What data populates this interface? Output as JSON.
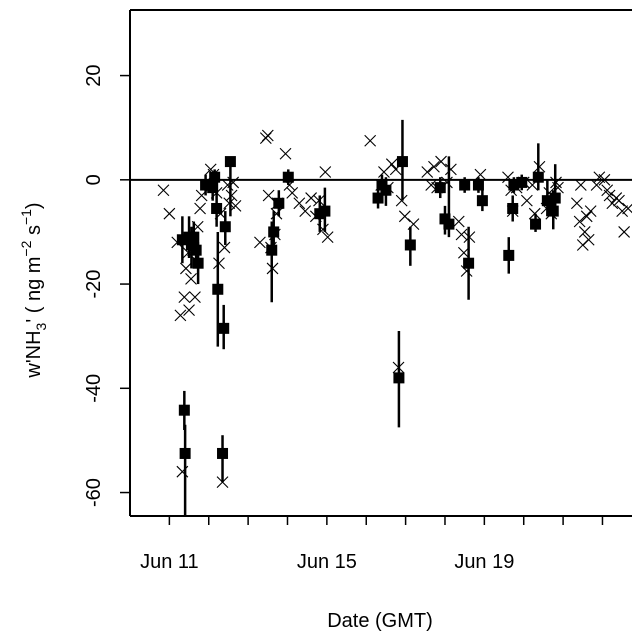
{
  "chart_data": {
    "type": "scatter",
    "xlabel": "Date (GMT)",
    "ylabel": {
      "prefix": "w'NH",
      "sub": "3",
      "middle": "' ( ng m",
      "sup1": "−2",
      "s": " s",
      "sup2": "−1",
      "suffix": ")"
    },
    "x_unit": "day of June (GMT)",
    "xlim": [
      10.0,
      22.75
    ],
    "ylim": [
      -64.5,
      34.5
    ],
    "x_ticks": [
      11,
      15,
      19
    ],
    "x_tick_labels": [
      "Jun 11",
      "Jun 15",
      "Jun 19"
    ],
    "y_ticks": [
      -60,
      -40,
      -20,
      0,
      20
    ],
    "y_tick_labels": [
      "-60",
      "-40",
      "-20",
      "0",
      "20"
    ],
    "grid": false,
    "reference_line_y": 0,
    "series": [
      {
        "marker": "square",
        "points": [
          {
            "x": 11.33,
            "y": -11.5,
            "lo": -16.0,
            "hi": -7.0
          },
          {
            "x": 11.38,
            "y": -44.2,
            "lo": -48.0,
            "hi": -40.5
          },
          {
            "x": 11.4,
            "y": -52.5,
            "lo": -64.5,
            "hi": -47.0
          },
          {
            "x": 11.5,
            "y": -11.0,
            "lo": -15.0,
            "hi": -7.0
          },
          {
            "x": 11.56,
            "y": -12.5,
            "lo": -17.0,
            "hi": -9.0
          },
          {
            "x": 11.62,
            "y": -11.0,
            "lo": -14.0,
            "hi": -8.0
          },
          {
            "x": 11.68,
            "y": -13.5,
            "lo": -17.0,
            "hi": -10.0
          },
          {
            "x": 11.73,
            "y": -16.0,
            "lo": -20.0,
            "hi": -12.0
          },
          {
            "x": 11.92,
            "y": -1.0,
            "lo": -3.0,
            "hi": 1.0
          },
          {
            "x": 12.1,
            "y": -1.5,
            "lo": -4.0,
            "hi": 1.0
          },
          {
            "x": 12.15,
            "y": 0.5,
            "lo": -1.5,
            "hi": 2.0
          },
          {
            "x": 12.2,
            "y": -5.5,
            "lo": -9.0,
            "hi": -2.0
          },
          {
            "x": 12.23,
            "y": -21.0,
            "lo": -32.0,
            "hi": -10.0
          },
          {
            "x": 12.35,
            "y": -52.5,
            "lo": -58.0,
            "hi": -49.0
          },
          {
            "x": 12.38,
            "y": -28.5,
            "lo": -32.5,
            "hi": -24.0
          },
          {
            "x": 12.42,
            "y": -9.0,
            "lo": -12.5,
            "hi": -6.0
          },
          {
            "x": 12.55,
            "y": 3.5,
            "lo": -7.0,
            "hi": 0.5
          },
          {
            "x": 13.6,
            "y": -13.5,
            "lo": -23.5,
            "hi": -8.0
          },
          {
            "x": 13.65,
            "y": -10.0,
            "lo": -14.0,
            "hi": -6.0
          },
          {
            "x": 13.78,
            "y": -4.5,
            "lo": -7.0,
            "hi": -2.0
          },
          {
            "x": 14.02,
            "y": 0.5,
            "lo": -1.0,
            "hi": 2.0
          },
          {
            "x": 14.82,
            "y": -6.5,
            "lo": -10.0,
            "hi": -3.0
          },
          {
            "x": 14.95,
            "y": -6.0,
            "lo": -10.0,
            "hi": -1.5
          },
          {
            "x": 16.3,
            "y": -3.5,
            "lo": -5.5,
            "hi": -1.0
          },
          {
            "x": 16.4,
            "y": -1.0,
            "lo": -3.5,
            "hi": 1.0
          },
          {
            "x": 16.5,
            "y": -2.0,
            "lo": -5.0,
            "hi": 0.5
          },
          {
            "x": 16.83,
            "y": -38.0,
            "lo": -47.5,
            "hi": -29.0
          },
          {
            "x": 16.92,
            "y": 3.5,
            "lo": -4.0,
            "hi": 11.5
          },
          {
            "x": 17.12,
            "y": -12.5,
            "lo": -16.5,
            "hi": -9.0
          },
          {
            "x": 17.88,
            "y": -1.5,
            "lo": -3.5,
            "hi": 0.5
          },
          {
            "x": 18.0,
            "y": -7.5,
            "lo": -10.5,
            "hi": -5.0
          },
          {
            "x": 18.1,
            "y": -8.5,
            "lo": -11.0,
            "hi": 4.5
          },
          {
            "x": 18.5,
            "y": -1.0,
            "lo": -2.5,
            "hi": 0.5
          },
          {
            "x": 18.6,
            "y": -16.0,
            "lo": -23.0,
            "hi": -9.0
          },
          {
            "x": 18.85,
            "y": -1.0,
            "lo": -2.5,
            "hi": 0.5
          },
          {
            "x": 18.95,
            "y": -4.0,
            "lo": -6.0,
            "hi": -2.0
          },
          {
            "x": 19.62,
            "y": -14.5,
            "lo": -18.0,
            "hi": -11.0
          },
          {
            "x": 19.72,
            "y": -5.5,
            "lo": -8.0,
            "hi": -3.0
          },
          {
            "x": 19.75,
            "y": -1.0,
            "lo": -2.5,
            "hi": 0.5
          },
          {
            "x": 19.95,
            "y": -0.5,
            "lo": -2.0,
            "hi": 1.0
          },
          {
            "x": 20.3,
            "y": -8.5,
            "lo": -10.0,
            "hi": -6.5
          },
          {
            "x": 20.37,
            "y": 0.5,
            "lo": -2.0,
            "hi": 7.0
          },
          {
            "x": 20.6,
            "y": -4.0,
            "lo": -7.0,
            "hi": 0.0
          },
          {
            "x": 20.75,
            "y": -6.0,
            "lo": -9.5,
            "hi": -2.0
          },
          {
            "x": 20.8,
            "y": -3.5,
            "lo": -6.0,
            "hi": 3.0
          }
        ]
      },
      {
        "marker": "x",
        "points": [
          {
            "x": 10.85,
            "y": -2.0
          },
          {
            "x": 11.0,
            "y": -6.5
          },
          {
            "x": 11.2,
            "y": -12.0
          },
          {
            "x": 11.28,
            "y": -26.0
          },
          {
            "x": 11.33,
            "y": -56.0
          },
          {
            "x": 11.38,
            "y": -22.5
          },
          {
            "x": 11.42,
            "y": -17.0
          },
          {
            "x": 11.48,
            "y": -14.0
          },
          {
            "x": 11.5,
            "y": -25.0
          },
          {
            "x": 11.55,
            "y": -19.0
          },
          {
            "x": 11.6,
            "y": -13.5
          },
          {
            "x": 11.65,
            "y": -22.5
          },
          {
            "x": 11.72,
            "y": -9.0
          },
          {
            "x": 11.78,
            "y": -5.5
          },
          {
            "x": 11.82,
            "y": -3.0
          },
          {
            "x": 12.05,
            "y": 2.0
          },
          {
            "x": 12.12,
            "y": 1.0
          },
          {
            "x": 12.2,
            "y": -2.5
          },
          {
            "x": 12.26,
            "y": -16.0
          },
          {
            "x": 12.3,
            "y": -6.5
          },
          {
            "x": 12.35,
            "y": -58.0
          },
          {
            "x": 12.4,
            "y": -13.0
          },
          {
            "x": 12.48,
            "y": -1.0
          },
          {
            "x": 12.52,
            "y": -4.5
          },
          {
            "x": 12.58,
            "y": -3.0
          },
          {
            "x": 12.62,
            "y": -0.5
          },
          {
            "x": 12.68,
            "y": -5.0
          },
          {
            "x": 13.3,
            "y": -12.0
          },
          {
            "x": 13.45,
            "y": 8.0
          },
          {
            "x": 13.5,
            "y": 8.5
          },
          {
            "x": 13.52,
            "y": -3.0
          },
          {
            "x": 13.58,
            "y": -13.0
          },
          {
            "x": 13.62,
            "y": -17.0
          },
          {
            "x": 13.68,
            "y": -10.5
          },
          {
            "x": 13.72,
            "y": -6.5
          },
          {
            "x": 13.75,
            "y": -4.5
          },
          {
            "x": 13.95,
            "y": 5.0
          },
          {
            "x": 14.05,
            "y": -1.0
          },
          {
            "x": 14.12,
            "y": -2.5
          },
          {
            "x": 14.3,
            "y": -4.5
          },
          {
            "x": 14.45,
            "y": -6.0
          },
          {
            "x": 14.6,
            "y": -3.5
          },
          {
            "x": 14.72,
            "y": -7.0
          },
          {
            "x": 14.8,
            "y": -4.0
          },
          {
            "x": 14.9,
            "y": -9.5
          },
          {
            "x": 14.96,
            "y": 1.5
          },
          {
            "x": 15.02,
            "y": -11.0
          },
          {
            "x": 16.1,
            "y": 7.5
          },
          {
            "x": 16.38,
            "y": -1.0
          },
          {
            "x": 16.45,
            "y": 1.5
          },
          {
            "x": 16.55,
            "y": -1.5
          },
          {
            "x": 16.65,
            "y": 3.0
          },
          {
            "x": 16.75,
            "y": 2.0
          },
          {
            "x": 16.82,
            "y": -36.0
          },
          {
            "x": 16.9,
            "y": -4.0
          },
          {
            "x": 16.98,
            "y": -7.0
          },
          {
            "x": 17.2,
            "y": -8.5
          },
          {
            "x": 17.55,
            "y": 1.5
          },
          {
            "x": 17.65,
            "y": -1.0
          },
          {
            "x": 17.72,
            "y": 2.5
          },
          {
            "x": 17.8,
            "y": -1.5
          },
          {
            "x": 17.9,
            "y": 3.5
          },
          {
            "x": 18.05,
            "y": -0.5
          },
          {
            "x": 18.15,
            "y": 2.0
          },
          {
            "x": 18.35,
            "y": -8.0
          },
          {
            "x": 18.42,
            "y": -10.5
          },
          {
            "x": 18.48,
            "y": -14.0
          },
          {
            "x": 18.55,
            "y": -17.5
          },
          {
            "x": 18.62,
            "y": -11.0
          },
          {
            "x": 18.9,
            "y": 1.0
          },
          {
            "x": 19.6,
            "y": 0.5
          },
          {
            "x": 19.68,
            "y": -2.0
          },
          {
            "x": 19.72,
            "y": -6.0
          },
          {
            "x": 19.82,
            "y": -1.5
          },
          {
            "x": 20.0,
            "y": -0.5
          },
          {
            "x": 20.08,
            "y": -4.0
          },
          {
            "x": 20.22,
            "y": -1.0
          },
          {
            "x": 20.28,
            "y": -6.5
          },
          {
            "x": 20.4,
            "y": 2.5
          },
          {
            "x": 20.58,
            "y": -5.5
          },
          {
            "x": 20.65,
            "y": -2.5
          },
          {
            "x": 20.7,
            "y": -6.5
          },
          {
            "x": 20.82,
            "y": -0.5
          },
          {
            "x": 20.87,
            "y": -1.5
          },
          {
            "x": 21.35,
            "y": -4.5
          },
          {
            "x": 21.42,
            "y": -8.0
          },
          {
            "x": 21.45,
            "y": -1.0
          },
          {
            "x": 21.5,
            "y": -12.5
          },
          {
            "x": 21.55,
            "y": -10.0
          },
          {
            "x": 21.6,
            "y": -7.0
          },
          {
            "x": 21.65,
            "y": -11.5
          },
          {
            "x": 21.7,
            "y": -6.0
          },
          {
            "x": 21.85,
            "y": -1.0
          },
          {
            "x": 21.92,
            "y": 0.5
          },
          {
            "x": 22.05,
            "y": 0.0
          },
          {
            "x": 22.12,
            "y": -2.0
          },
          {
            "x": 22.18,
            "y": -3.0
          },
          {
            "x": 22.25,
            "y": -4.5
          },
          {
            "x": 22.35,
            "y": -3.5
          },
          {
            "x": 22.42,
            "y": -4.0
          },
          {
            "x": 22.5,
            "y": -6.0
          },
          {
            "x": 22.55,
            "y": -10.0
          },
          {
            "x": 22.65,
            "y": -5.5
          }
        ]
      }
    ]
  }
}
